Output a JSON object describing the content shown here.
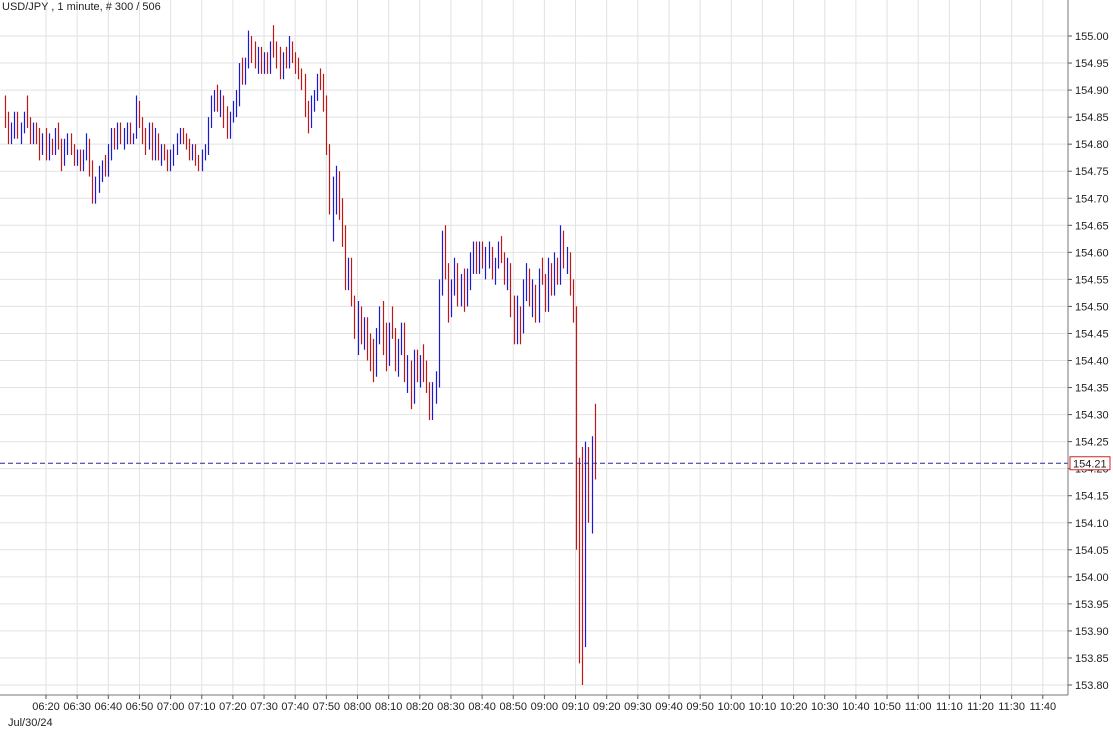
{
  "header": {
    "title": "USD/JPY , 1 minute, # 300 / 506"
  },
  "chart_data": {
    "type": "bar",
    "style": "ohlc",
    "instrument": "USD/JPY",
    "interval": "1 minute",
    "date_label": "Jul/30/24",
    "current_price": "154.21",
    "ylim": [
      153.79,
      155.04
    ],
    "grid": true,
    "y_ticks": [
      "155.00",
      "154.95",
      "154.90",
      "154.85",
      "154.80",
      "154.75",
      "154.70",
      "154.65",
      "154.60",
      "154.55",
      "154.50",
      "154.45",
      "154.40",
      "154.35",
      "154.30",
      "154.25",
      "154.20",
      "154.15",
      "154.10",
      "154.05",
      "154.00",
      "153.95",
      "153.90",
      "153.85",
      "153.80"
    ],
    "x_ticks": [
      "06:20",
      "06:30",
      "06:40",
      "06:50",
      "07:00",
      "07:10",
      "07:20",
      "07:30",
      "07:40",
      "07:50",
      "08:00",
      "08:10",
      "08:20",
      "08:30",
      "08:40",
      "08:50",
      "09:00",
      "09:10",
      "09:20",
      "09:30",
      "09:40",
      "09:50",
      "10:00",
      "10:10",
      "10:20",
      "10:30",
      "10:40",
      "10:50",
      "11:00",
      "11:10",
      "11:20",
      "11:30",
      "11:40"
    ],
    "first_bar_time": "06:13",
    "bar_minutes": 1,
    "bars": [
      [
        154.87,
        154.89,
        154.83,
        154.85
      ],
      [
        154.85,
        154.86,
        154.8,
        154.82
      ],
      [
        154.82,
        154.84,
        154.8,
        154.83
      ],
      [
        154.83,
        154.86,
        154.81,
        154.84
      ],
      [
        154.84,
        154.86,
        154.81,
        154.82
      ],
      [
        154.82,
        154.84,
        154.8,
        154.83
      ],
      [
        154.83,
        154.86,
        154.82,
        154.85
      ],
      [
        154.85,
        154.89,
        154.83,
        154.84
      ],
      [
        154.84,
        154.85,
        154.8,
        154.81
      ],
      [
        154.81,
        154.84,
        154.8,
        154.83
      ],
      [
        154.83,
        154.84,
        154.8,
        154.82
      ],
      [
        154.82,
        154.83,
        154.77,
        154.79
      ],
      [
        154.79,
        154.82,
        154.78,
        154.81
      ],
      [
        154.81,
        154.83,
        154.77,
        154.78
      ],
      [
        154.78,
        154.82,
        154.77,
        154.8
      ],
      [
        154.8,
        154.81,
        154.78,
        154.79
      ],
      [
        154.79,
        154.83,
        154.78,
        154.82
      ],
      [
        154.82,
        154.84,
        154.79,
        154.8
      ],
      [
        154.8,
        154.81,
        154.75,
        154.77
      ],
      [
        154.77,
        154.81,
        154.76,
        154.8
      ],
      [
        154.8,
        154.82,
        154.78,
        154.81
      ],
      [
        154.81,
        154.82,
        154.78,
        154.79
      ],
      [
        154.79,
        154.8,
        154.76,
        154.77
      ],
      [
        154.77,
        154.79,
        154.76,
        154.78
      ],
      [
        154.78,
        154.79,
        154.75,
        154.76
      ],
      [
        154.76,
        154.79,
        154.75,
        154.78
      ],
      [
        154.78,
        154.82,
        154.77,
        154.8
      ],
      [
        154.8,
        154.81,
        154.74,
        154.75
      ],
      [
        154.75,
        154.77,
        154.69,
        154.71
      ],
      [
        154.71,
        154.74,
        154.69,
        154.73
      ],
      [
        154.73,
        154.76,
        154.71,
        154.74
      ],
      [
        154.74,
        154.77,
        154.73,
        154.76
      ],
      [
        154.76,
        154.78,
        154.74,
        154.75
      ],
      [
        154.75,
        154.8,
        154.74,
        154.79
      ],
      [
        154.79,
        154.83,
        154.77,
        154.82
      ],
      [
        154.82,
        154.83,
        154.79,
        154.8
      ],
      [
        154.8,
        154.84,
        154.79,
        154.83
      ],
      [
        154.83,
        154.84,
        154.8,
        154.81
      ],
      [
        154.81,
        154.83,
        154.79,
        154.82
      ],
      [
        154.82,
        154.84,
        154.8,
        154.83
      ],
      [
        154.83,
        154.84,
        154.8,
        154.81
      ],
      [
        154.81,
        154.82,
        154.8,
        154.82
      ],
      [
        154.82,
        154.89,
        154.81,
        154.87
      ],
      [
        154.87,
        154.88,
        154.83,
        154.84
      ],
      [
        154.84,
        154.85,
        154.8,
        154.82
      ],
      [
        154.82,
        154.83,
        154.78,
        154.8
      ],
      [
        154.8,
        154.84,
        154.79,
        154.83
      ],
      [
        154.83,
        154.84,
        154.77,
        154.79
      ],
      [
        154.79,
        154.83,
        154.77,
        154.81
      ],
      [
        154.81,
        154.82,
        154.77,
        154.78
      ],
      [
        154.78,
        154.8,
        154.76,
        154.79
      ],
      [
        154.79,
        154.8,
        154.77,
        154.78
      ],
      [
        154.78,
        154.79,
        154.75,
        154.77
      ],
      [
        154.77,
        154.79,
        154.75,
        154.78
      ],
      [
        154.78,
        154.8,
        154.76,
        154.79
      ],
      [
        154.79,
        154.82,
        154.78,
        154.81
      ],
      [
        154.81,
        154.83,
        154.8,
        154.82
      ],
      [
        154.82,
        154.83,
        154.8,
        154.81
      ],
      [
        154.81,
        154.82,
        154.79,
        154.8
      ],
      [
        154.8,
        154.81,
        154.77,
        154.78
      ],
      [
        154.78,
        154.8,
        154.77,
        154.79
      ],
      [
        154.79,
        154.8,
        154.76,
        154.77
      ],
      [
        154.77,
        154.78,
        154.75,
        154.76
      ],
      [
        154.76,
        154.79,
        154.75,
        154.78
      ],
      [
        154.78,
        154.8,
        154.77,
        154.79
      ],
      [
        154.79,
        154.85,
        154.78,
        154.84
      ],
      [
        154.84,
        154.89,
        154.83,
        154.88
      ],
      [
        154.88,
        154.9,
        154.86,
        154.89
      ],
      [
        154.89,
        154.91,
        154.86,
        154.87
      ],
      [
        154.87,
        154.9,
        154.85,
        154.88
      ],
      [
        154.88,
        154.89,
        154.83,
        154.84
      ],
      [
        154.84,
        154.87,
        154.81,
        154.82
      ],
      [
        154.82,
        154.86,
        154.81,
        154.85
      ],
      [
        154.85,
        154.88,
        154.84,
        154.87
      ],
      [
        154.87,
        154.9,
        154.85,
        154.88
      ],
      [
        154.88,
        154.95,
        154.87,
        154.94
      ],
      [
        154.94,
        154.96,
        154.91,
        154.92
      ],
      [
        154.92,
        154.96,
        154.91,
        154.95
      ],
      [
        154.95,
        155.01,
        154.94,
        154.99
      ],
      [
        154.99,
        155.0,
        154.95,
        154.97
      ],
      [
        154.97,
        154.99,
        154.94,
        154.95
      ],
      [
        154.95,
        154.98,
        154.93,
        154.96
      ],
      [
        154.96,
        154.98,
        154.93,
        154.94
      ],
      [
        154.94,
        154.97,
        154.93,
        154.96
      ],
      [
        154.96,
        154.97,
        154.93,
        154.94
      ],
      [
        154.94,
        154.99,
        154.93,
        154.98
      ],
      [
        154.98,
        155.02,
        154.96,
        154.97
      ],
      [
        154.97,
        154.99,
        154.94,
        154.95
      ],
      [
        154.95,
        154.98,
        154.92,
        154.93
      ],
      [
        154.93,
        154.97,
        154.92,
        154.96
      ],
      [
        154.96,
        154.98,
        154.94,
        154.95
      ],
      [
        154.95,
        155.0,
        154.94,
        154.98
      ],
      [
        154.98,
        154.99,
        154.95,
        154.96
      ],
      [
        154.96,
        154.97,
        154.93,
        154.94
      ],
      [
        154.94,
        154.96,
        154.92,
        154.93
      ],
      [
        154.93,
        154.94,
        154.9,
        154.92
      ],
      [
        154.92,
        154.93,
        154.85,
        154.86
      ],
      [
        154.86,
        154.88,
        154.82,
        154.84
      ],
      [
        154.84,
        154.89,
        154.83,
        154.88
      ],
      [
        154.88,
        154.9,
        154.86,
        154.89
      ],
      [
        154.89,
        154.93,
        154.88,
        154.92
      ],
      [
        154.92,
        154.94,
        154.9,
        154.91
      ],
      [
        154.91,
        154.93,
        154.86,
        154.88
      ],
      [
        154.88,
        154.89,
        154.78,
        154.79
      ],
      [
        154.79,
        154.8,
        154.67,
        154.69
      ],
      [
        154.69,
        154.74,
        154.62,
        154.71
      ],
      [
        154.71,
        154.76,
        154.67,
        154.73
      ],
      [
        154.73,
        154.75,
        154.66,
        154.67
      ],
      [
        154.67,
        154.7,
        154.61,
        154.62
      ],
      [
        154.62,
        154.65,
        154.53,
        154.55
      ],
      [
        154.55,
        154.59,
        154.53,
        154.58
      ],
      [
        154.58,
        154.59,
        154.5,
        154.51
      ],
      [
        154.51,
        154.52,
        154.44,
        154.46
      ],
      [
        154.46,
        154.51,
        154.41,
        154.48
      ],
      [
        154.48,
        154.5,
        154.43,
        154.44
      ],
      [
        154.44,
        154.48,
        154.42,
        154.47
      ],
      [
        154.47,
        154.48,
        154.4,
        154.42
      ],
      [
        154.42,
        154.45,
        154.38,
        154.4
      ],
      [
        154.4,
        154.44,
        154.36,
        154.38
      ],
      [
        154.38,
        154.46,
        154.37,
        154.45
      ],
      [
        154.45,
        154.5,
        154.43,
        154.48
      ],
      [
        154.48,
        154.51,
        154.41,
        154.43
      ],
      [
        154.43,
        154.47,
        154.38,
        154.4
      ],
      [
        154.4,
        154.47,
        154.39,
        154.46
      ],
      [
        154.46,
        154.5,
        154.44,
        154.45
      ],
      [
        154.45,
        154.46,
        154.38,
        154.39
      ],
      [
        154.39,
        154.44,
        154.37,
        154.43
      ],
      [
        154.43,
        154.47,
        154.41,
        154.46
      ],
      [
        154.46,
        154.47,
        154.36,
        154.37
      ],
      [
        154.37,
        154.41,
        154.34,
        154.39
      ],
      [
        154.39,
        154.4,
        154.31,
        154.33
      ],
      [
        154.33,
        154.42,
        154.32,
        154.41
      ],
      [
        154.41,
        154.42,
        154.36,
        154.37
      ],
      [
        154.37,
        154.41,
        154.35,
        154.4
      ],
      [
        154.4,
        154.43,
        154.36,
        154.38
      ],
      [
        154.38,
        154.4,
        154.34,
        154.35
      ],
      [
        154.35,
        154.36,
        154.29,
        154.31
      ],
      [
        154.31,
        154.36,
        154.29,
        154.34
      ],
      [
        154.34,
        154.38,
        154.32,
        154.36
      ],
      [
        154.36,
        154.55,
        154.35,
        154.53
      ],
      [
        154.53,
        154.64,
        154.52,
        154.61
      ],
      [
        154.61,
        154.65,
        154.55,
        154.57
      ],
      [
        154.57,
        154.58,
        154.47,
        154.49
      ],
      [
        154.49,
        154.55,
        154.48,
        154.54
      ],
      [
        154.54,
        154.59,
        154.52,
        154.57
      ],
      [
        154.57,
        154.58,
        154.5,
        154.52
      ],
      [
        154.52,
        154.56,
        154.5,
        154.55
      ],
      [
        154.55,
        154.57,
        154.49,
        154.51
      ],
      [
        154.51,
        154.57,
        154.5,
        154.55
      ],
      [
        154.55,
        154.6,
        154.53,
        154.58
      ],
      [
        154.58,
        154.62,
        154.56,
        154.6
      ],
      [
        154.6,
        154.62,
        154.56,
        154.57
      ],
      [
        154.57,
        154.62,
        154.56,
        154.61
      ],
      [
        154.61,
        154.62,
        154.57,
        154.58
      ],
      [
        154.58,
        154.61,
        154.55,
        154.59
      ],
      [
        154.59,
        154.62,
        154.57,
        154.6
      ],
      [
        154.6,
        154.61,
        154.55,
        154.56
      ],
      [
        154.56,
        154.59,
        154.54,
        154.58
      ],
      [
        154.58,
        154.62,
        154.57,
        154.61
      ],
      [
        154.61,
        154.63,
        154.58,
        154.59
      ],
      [
        154.59,
        154.6,
        154.54,
        154.55
      ],
      [
        154.55,
        154.59,
        154.53,
        154.57
      ],
      [
        154.57,
        154.58,
        154.48,
        154.5
      ],
      [
        154.5,
        154.52,
        154.43,
        154.45
      ],
      [
        154.45,
        154.52,
        154.43,
        154.49
      ],
      [
        154.49,
        154.5,
        154.43,
        154.46
      ],
      [
        154.46,
        154.55,
        154.45,
        154.53
      ],
      [
        154.53,
        154.58,
        154.51,
        154.56
      ],
      [
        154.56,
        154.57,
        154.5,
        154.52
      ],
      [
        154.52,
        154.55,
        154.48,
        154.53
      ],
      [
        154.53,
        154.54,
        154.47,
        154.48
      ],
      [
        154.48,
        154.57,
        154.47,
        154.56
      ],
      [
        154.56,
        154.59,
        154.54,
        154.55
      ],
      [
        154.55,
        154.56,
        154.49,
        154.5
      ],
      [
        154.5,
        154.59,
        154.49,
        154.57
      ],
      [
        154.57,
        154.58,
        154.52,
        154.53
      ],
      [
        154.53,
        154.6,
        154.52,
        154.58
      ],
      [
        154.58,
        154.59,
        154.54,
        154.55
      ],
      [
        154.55,
        154.65,
        154.54,
        154.63
      ],
      [
        154.63,
        154.64,
        154.57,
        154.58
      ],
      [
        154.58,
        154.61,
        154.56,
        154.59
      ],
      [
        154.59,
        154.6,
        154.52,
        154.54
      ],
      [
        154.54,
        154.55,
        154.47,
        154.49
      ],
      [
        154.49,
        154.5,
        154.05,
        154.1
      ],
      [
        154.1,
        154.22,
        153.84,
        153.95
      ],
      [
        153.95,
        154.24,
        153.8,
        153.88
      ],
      [
        153.88,
        154.25,
        153.87,
        154.2
      ],
      [
        154.2,
        154.24,
        154.1,
        154.14
      ],
      [
        154.14,
        154.26,
        154.08,
        154.22
      ],
      [
        154.22,
        154.32,
        154.18,
        154.21
      ]
    ]
  },
  "colors": {
    "up": "#1a1ad0",
    "down": "#c01818",
    "neutral": "#111111",
    "grid": "#e2e2e2",
    "price_line": "#2a2a9a",
    "price_box_border": "#d42020"
  }
}
